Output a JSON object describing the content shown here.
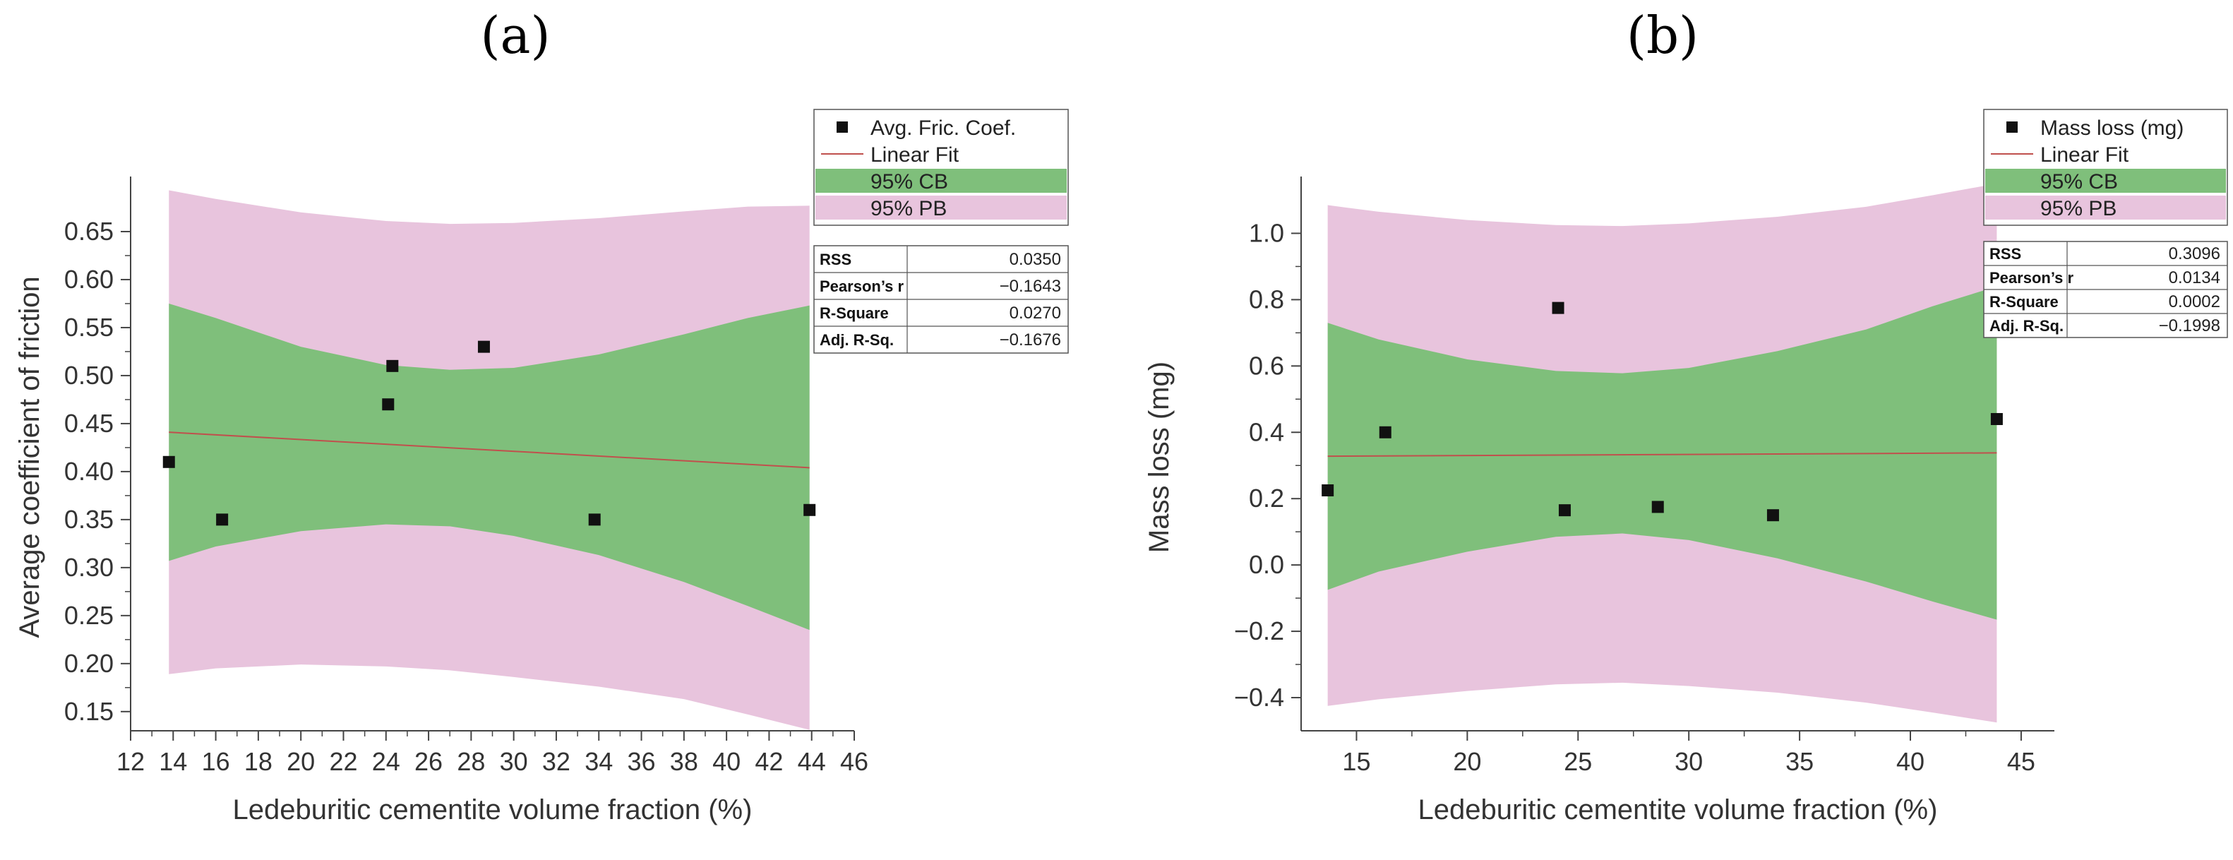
{
  "chart_data": [
    {
      "type": "scatter",
      "panel_label": "(a)",
      "xlabel": "Ledeburitic cementite volume fraction (%)",
      "ylabel": "Average coefficient of friction",
      "xlim": [
        12,
        46
      ],
      "ylim": [
        0.13,
        0.7
      ],
      "xticks": [
        12,
        14,
        16,
        18,
        20,
        22,
        24,
        26,
        28,
        30,
        32,
        34,
        36,
        38,
        40,
        42,
        44,
        46
      ],
      "yticks": [
        0.15,
        0.2,
        0.25,
        0.3,
        0.35,
        0.4,
        0.45,
        0.5,
        0.55,
        0.6,
        0.65
      ],
      "x_tick_labels": [
        "12",
        "14",
        "16",
        "18",
        "20",
        "22",
        "24",
        "26",
        "28",
        "30",
        "32",
        "34",
        "36",
        "38",
        "40",
        "42",
        "44",
        "46"
      ],
      "y_tick_labels": [
        "0.15",
        "0.20",
        "0.25",
        "0.30",
        "0.35",
        "0.40",
        "0.45",
        "0.50",
        "0.55",
        "0.60",
        "0.65"
      ],
      "points": {
        "name": "Avg. Fric. Coef.",
        "x": [
          13.8,
          16.3,
          24.1,
          24.3,
          28.6,
          33.8,
          43.9
        ],
        "y": [
          0.41,
          0.35,
          0.47,
          0.51,
          0.53,
          0.35,
          0.36
        ]
      },
      "fit": {
        "name": "Linear Fit",
        "x": [
          13.8,
          43.9
        ],
        "y": [
          0.441,
          0.404
        ]
      },
      "cb": {
        "name": "95% CB",
        "x": [
          13.8,
          16,
          20,
          24,
          27,
          30,
          34,
          38,
          41,
          43.9
        ],
        "upper": [
          0.575,
          0.56,
          0.53,
          0.511,
          0.506,
          0.508,
          0.522,
          0.543,
          0.56,
          0.573
        ],
        "lower": [
          0.307,
          0.322,
          0.338,
          0.345,
          0.343,
          0.333,
          0.313,
          0.285,
          0.26,
          0.235
        ]
      },
      "pb": {
        "name": "95% PB",
        "x": [
          13.8,
          16,
          20,
          24,
          27,
          30,
          34,
          38,
          41,
          43.9
        ],
        "upper": [
          0.693,
          0.684,
          0.67,
          0.661,
          0.658,
          0.659,
          0.664,
          0.671,
          0.676,
          0.677
        ],
        "lower": [
          0.189,
          0.195,
          0.199,
          0.197,
          0.193,
          0.186,
          0.176,
          0.163,
          0.147,
          0.131
        ]
      },
      "legend": [
        "Avg. Fric. Coef.",
        "Linear Fit",
        "95% CB",
        "95% PB"
      ],
      "stats": [
        {
          "label": "RSS",
          "value": "0.0350"
        },
        {
          "label": "Pearson’s r",
          "value": "−0.1643"
        },
        {
          "label": "R-Square",
          "value": "0.0270"
        },
        {
          "label": "Adj. R-Sq.",
          "value": "−0.1676"
        }
      ]
    },
    {
      "type": "scatter",
      "panel_label": "(b)",
      "xlabel": "Ledeburitic cementite volume fraction (%)",
      "ylabel": "Mass loss (mg)",
      "xlim": [
        12.5,
        46.5
      ],
      "ylim": [
        -0.5,
        1.15
      ],
      "xticks": [
        15,
        20,
        25,
        30,
        35,
        40,
        45
      ],
      "yticks": [
        -0.4,
        -0.2,
        0,
        0.2,
        0.4,
        0.6,
        0.8,
        1.0
      ],
      "x_tick_labels": [
        "15",
        "20",
        "25",
        "30",
        "35",
        "40",
        "45"
      ],
      "y_tick_labels": [
        "−0.4",
        "−0.2",
        "0.0",
        "0.2",
        "0.4",
        "0.6",
        "0.8",
        "1.0"
      ],
      "points": {
        "name": "Mass loss (mg)",
        "x": [
          13.7,
          16.3,
          24.1,
          24.4,
          28.6,
          33.8,
          43.9
        ],
        "y": [
          0.225,
          0.4,
          0.775,
          0.165,
          0.175,
          0.15,
          0.44
        ]
      },
      "fit": {
        "name": "Linear Fit",
        "x": [
          13.7,
          43.9
        ],
        "y": [
          0.328,
          0.338
        ]
      },
      "cb": {
        "name": "95% CB",
        "x": [
          13.7,
          16,
          20,
          24,
          27,
          30,
          34,
          38,
          41,
          43.9
        ],
        "upper": [
          0.73,
          0.68,
          0.62,
          0.585,
          0.578,
          0.594,
          0.645,
          0.71,
          0.78,
          0.84
        ],
        "lower": [
          -0.075,
          -0.02,
          0.04,
          0.085,
          0.095,
          0.075,
          0.02,
          -0.05,
          -0.11,
          -0.165
        ]
      },
      "pb": {
        "name": "95% PB",
        "x": [
          13.7,
          16,
          20,
          24,
          27,
          30,
          34,
          38,
          41,
          43.9
        ],
        "upper": [
          1.085,
          1.065,
          1.04,
          1.025,
          1.022,
          1.03,
          1.05,
          1.08,
          1.115,
          1.15
        ],
        "lower": [
          -0.425,
          -0.405,
          -0.38,
          -0.36,
          -0.355,
          -0.365,
          -0.385,
          -0.415,
          -0.445,
          -0.475
        ]
      },
      "legend": [
        "Mass loss (mg)",
        "Linear Fit",
        "95% CB",
        "95% PB"
      ],
      "stats": [
        {
          "label": "RSS",
          "value": "0.3096"
        },
        {
          "label": "Pearson’s r",
          "value": "0.0134"
        },
        {
          "label": "R-Square",
          "value": "0.0002"
        },
        {
          "label": "Adj. R-Sq.",
          "value": "−0.1998"
        }
      ]
    }
  ],
  "colors": {
    "cb_fill": "#7fbf7b",
    "pb_fill": "#e8c4dd",
    "fit_line": "#c0504d",
    "marker": "#111111",
    "axis": "#444444"
  }
}
